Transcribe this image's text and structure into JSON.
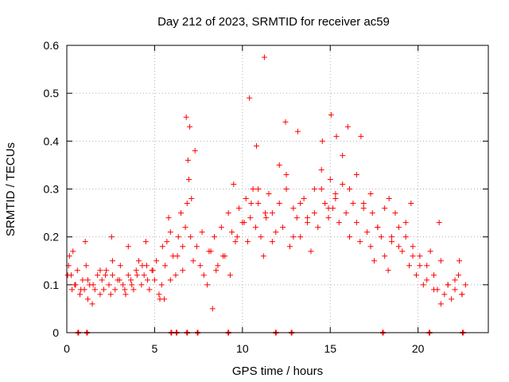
{
  "chart_data": {
    "type": "scatter",
    "title": "Day 212 of 2023, SRMTID for receiver ac59",
    "xlabel": "GPS time / hours",
    "ylabel": "SRMTID / TECUs",
    "xlim": [
      0,
      24
    ],
    "ylim": [
      0,
      0.6
    ],
    "x_ticks": [
      0,
      5,
      10,
      15,
      20
    ],
    "y_ticks": [
      0,
      0.1,
      0.2,
      0.3,
      0.4,
      0.5,
      0.6
    ],
    "grid": true,
    "marker": "+",
    "series_color": "#ff0000",
    "series": [
      {
        "name": "SRMTID",
        "x": [
          0.05,
          0.15,
          0.3,
          0.45,
          0.6,
          0.75,
          0.9,
          1.0,
          1.1,
          1.2,
          1.3,
          1.45,
          1.6,
          1.75,
          1.9,
          2.0,
          2.1,
          2.25,
          2.4,
          2.5,
          2.6,
          2.75,
          2.9,
          3.05,
          3.2,
          3.35,
          3.5,
          3.65,
          3.8,
          3.95,
          4.1,
          4.25,
          4.4,
          4.55,
          4.7,
          4.85,
          5.0,
          5.1,
          5.25,
          5.4,
          5.55,
          5.7,
          5.8,
          5.9,
          6.05,
          6.2,
          6.35,
          6.5,
          6.6,
          6.75,
          6.85,
          6.95,
          7.05,
          7.2,
          7.4,
          7.6,
          7.8,
          8.0,
          8.2,
          8.4,
          8.6,
          8.8,
          9.0,
          9.2,
          9.4,
          9.6,
          9.8,
          10.0,
          10.2,
          10.3,
          10.45,
          10.6,
          10.75,
          10.9,
          11.05,
          11.2,
          11.35,
          11.5,
          11.7,
          11.9,
          12.1,
          12.3,
          12.5,
          12.7,
          12.9,
          13.1,
          13.3,
          13.5,
          13.7,
          13.9,
          14.1,
          14.3,
          14.5,
          14.7,
          14.9,
          15.0,
          15.15,
          15.3,
          15.5,
          15.7,
          15.9,
          16.1,
          16.3,
          16.5,
          16.7,
          16.9,
          17.1,
          17.3,
          17.5,
          17.7,
          17.9,
          18.1,
          18.3,
          18.5,
          18.7,
          18.9,
          19.1,
          19.3,
          19.5,
          19.7,
          19.9,
          20.1,
          20.3,
          20.5,
          20.7,
          20.9,
          21.1,
          21.3,
          21.5,
          21.7,
          21.9,
          22.1,
          22.3,
          22.5,
          22.7,
          0.1,
          0.25,
          0.5,
          0.8,
          1.2,
          1.5,
          1.9,
          2.2,
          2.6,
          3.0,
          3.3,
          3.7,
          4.0,
          4.3,
          4.6,
          4.9,
          5.3,
          5.6,
          5.9,
          6.3,
          6.6,
          6.9,
          7.1,
          7.3,
          7.7,
          8.1,
          8.5,
          8.9,
          9.3,
          9.7,
          10.1,
          10.5,
          10.9,
          11.3,
          11.7,
          12.1,
          12.5,
          12.9,
          13.3,
          13.7,
          14.1,
          14.5,
          14.9,
          15.3,
          15.7,
          16.1,
          16.5,
          16.9,
          17.3,
          17.7,
          18.1,
          18.5,
          18.9,
          19.3,
          19.7,
          20.1,
          20.5,
          20.9,
          21.3,
          21.7,
          22.1,
          22.5,
          0.35,
          1.05,
          2.55,
          3.5,
          4.5,
          5.45,
          6.8,
          7.0,
          8.3,
          9.5,
          10.4,
          10.8,
          11.25,
          12.45,
          13.15,
          14.55,
          15.05,
          15.35,
          16.0,
          16.75,
          17.4,
          18.35,
          19.6,
          21.2,
          22.35
        ],
        "y": [
          0.12,
          0.16,
          0.09,
          0.1,
          0.13,
          0.08,
          0.11,
          0.09,
          0.14,
          0.07,
          0.1,
          0.06,
          0.09,
          0.12,
          0.08,
          0.11,
          0.09,
          0.13,
          0.1,
          0.08,
          0.12,
          0.09,
          0.11,
          0.14,
          0.1,
          0.08,
          0.12,
          0.11,
          0.09,
          0.13,
          0.15,
          0.1,
          0.12,
          0.14,
          0.09,
          0.13,
          0.11,
          0.15,
          0.08,
          0.1,
          0.07,
          0.19,
          0.24,
          0.21,
          0.16,
          0.12,
          0.2,
          0.25,
          0.18,
          0.22,
          0.27,
          0.32,
          0.2,
          0.15,
          0.18,
          0.14,
          0.12,
          0.1,
          0.17,
          0.2,
          0.14,
          0.22,
          0.16,
          0.25,
          0.21,
          0.19,
          0.26,
          0.23,
          0.28,
          0.19,
          0.24,
          0.3,
          0.22,
          0.27,
          0.2,
          0.16,
          0.24,
          0.29,
          0.25,
          0.21,
          0.27,
          0.22,
          0.3,
          0.18,
          0.26,
          0.24,
          0.2,
          0.28,
          0.23,
          0.17,
          0.25,
          0.22,
          0.3,
          0.27,
          0.24,
          0.32,
          0.26,
          0.29,
          0.23,
          0.31,
          0.25,
          0.2,
          0.27,
          0.23,
          0.19,
          0.26,
          0.21,
          0.18,
          0.15,
          0.22,
          0.2,
          0.16,
          0.13,
          0.19,
          0.25,
          0.22,
          0.17,
          0.2,
          0.14,
          0.18,
          0.12,
          0.16,
          0.1,
          0.14,
          0.17,
          0.12,
          0.09,
          0.06,
          0.08,
          0.1,
          0.07,
          0.09,
          0.12,
          0.08,
          0.1,
          0.14,
          0.12,
          0.1,
          0.09,
          0.11,
          0.1,
          0.13,
          0.12,
          0.15,
          0.11,
          0.09,
          0.1,
          0.12,
          0.14,
          0.11,
          0.13,
          0.07,
          0.14,
          0.11,
          0.16,
          0.13,
          0.36,
          0.28,
          0.38,
          0.21,
          0.17,
          0.13,
          0.16,
          0.12,
          0.2,
          0.23,
          0.27,
          0.3,
          0.25,
          0.19,
          0.35,
          0.33,
          0.2,
          0.27,
          0.24,
          0.3,
          0.34,
          0.26,
          0.28,
          0.37,
          0.3,
          0.33,
          0.27,
          0.29,
          0.22,
          0.26,
          0.2,
          0.18,
          0.23,
          0.16,
          0.14,
          0.11,
          0.09,
          0.15,
          0.1,
          0.11,
          0.08,
          0.17,
          0.19,
          0.2,
          0.18,
          0.19,
          0.18,
          0.45,
          0.43,
          0.05,
          0.31,
          0.49,
          0.39,
          0.575,
          0.44,
          0.42,
          0.4,
          0.455,
          0.41,
          0.43,
          0.41,
          0.25,
          0.28,
          0.27,
          0.23,
          0.15
        ]
      }
    ],
    "zero_markers_x": [
      0.65,
      1.15,
      5.95,
      6.25,
      6.85,
      7.45,
      9.2,
      11.9,
      12.8,
      18.0,
      20.65,
      22.55
    ]
  }
}
